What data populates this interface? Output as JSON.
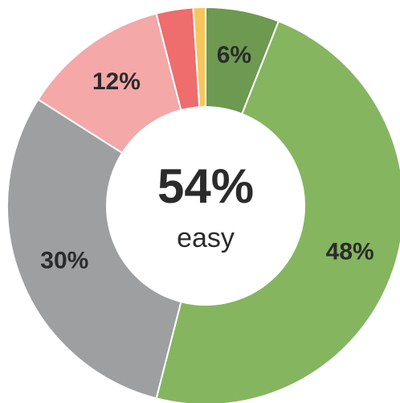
{
  "chart_data": {
    "type": "pie",
    "variant": "donut",
    "center": {
      "value": "54%",
      "caption": "easy"
    },
    "slices": [
      {
        "value": 6,
        "label": "6%",
        "color": "#6d9950"
      },
      {
        "value": 48,
        "label": "48%",
        "color": "#86b560"
      },
      {
        "value": 30,
        "label": "30%",
        "color": "#9d9fa1"
      },
      {
        "value": 12,
        "label": "12%",
        "color": "#f4a8a8"
      },
      {
        "value": 3,
        "label": "",
        "color": "#ee6d6d"
      },
      {
        "value": 1,
        "label": "",
        "color": "#f7c65a"
      }
    ],
    "start_angle_deg": 0,
    "direction": "clockwise"
  }
}
